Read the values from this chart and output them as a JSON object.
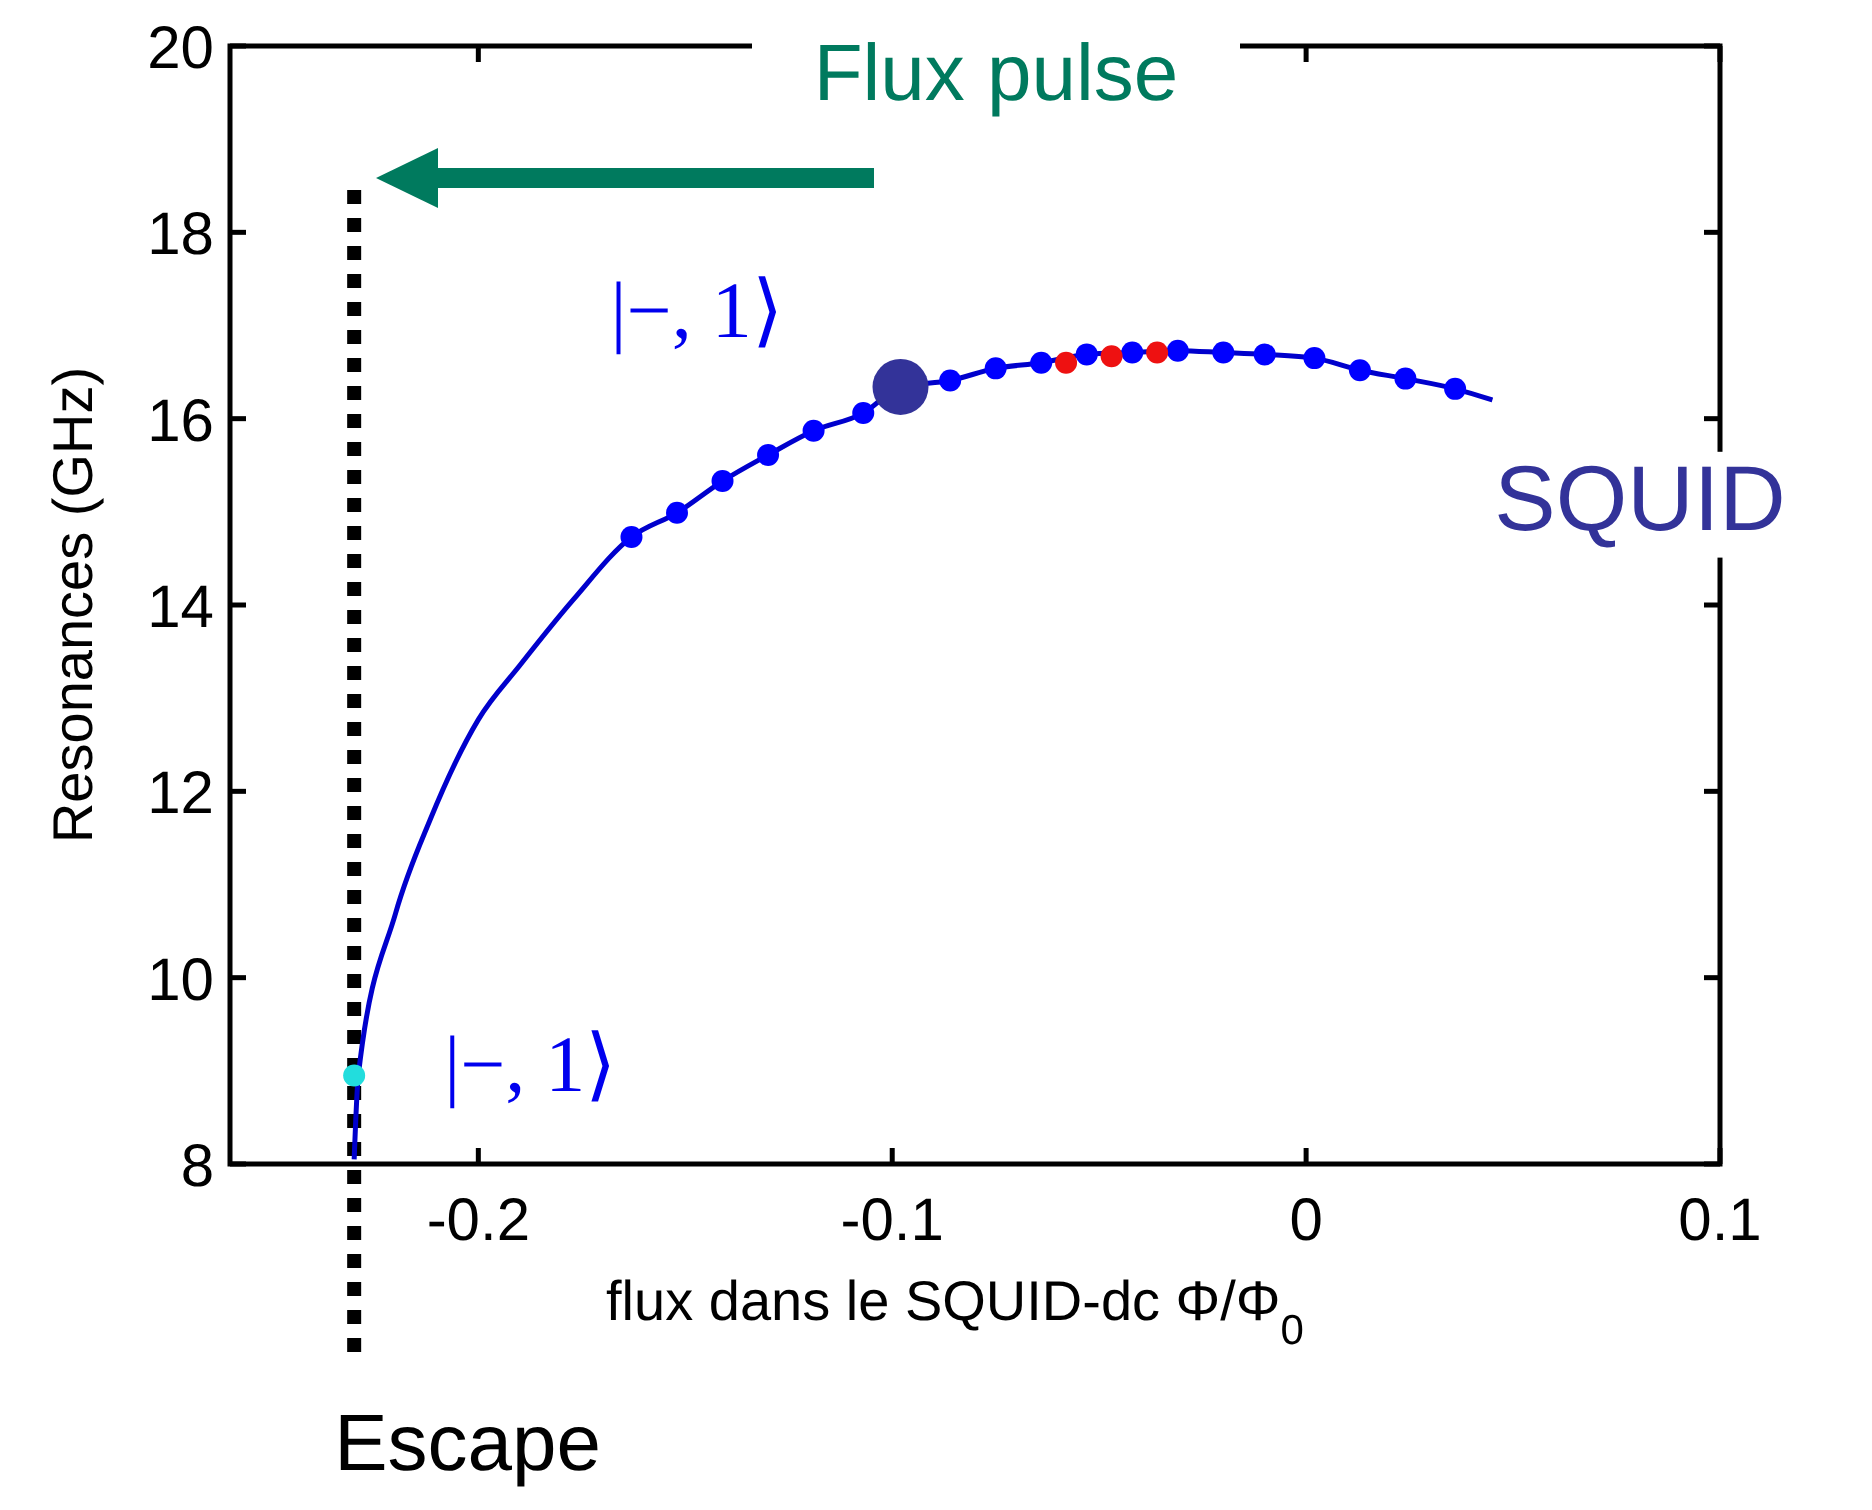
{
  "chart_data": {
    "type": "scatter",
    "xlabel": "flux dans le SQUID-dc Φ/Φ$_{0}$",
    "ylabel": "Resonances (GHz)",
    "xlim": [
      -0.26,
      0.1
    ],
    "xticks": [
      -0.2,
      -0.1,
      0,
      0.1
    ],
    "ylim": [
      8,
      20
    ],
    "yticks": [
      8,
      10,
      12,
      14,
      16,
      18,
      20
    ],
    "grid": false,
    "marker": "circle",
    "series": [
      {
        "type": "line",
        "marker": "none",
        "color": "#0000cc",
        "x": [
          -0.23,
          -0.229,
          -0.22,
          -0.2116,
          -0.2,
          -0.19,
          -0.177,
          -0.163,
          -0.152,
          -0.141,
          -0.13,
          -0.119,
          -0.107,
          -0.098,
          -0.086,
          -0.075,
          -0.064,
          -0.053,
          -0.042,
          -0.031,
          -0.02,
          -0.01,
          0.002,
          0.013,
          0.024,
          0.036,
          0.045
        ],
        "values": [
          8.05,
          8.95,
          10.69,
          11.7,
          12.77,
          13.35,
          14.06,
          14.73,
          14.99,
          15.33,
          15.61,
          15.87,
          16.06,
          16.34,
          16.41,
          16.54,
          16.6,
          16.69,
          16.71,
          16.73,
          16.71,
          16.69,
          16.65,
          16.52,
          16.43,
          16.32,
          16.2
        ]
      },
      {
        "color": "#0000ff",
        "x": [
          -0.163,
          -0.152,
          -0.141,
          -0.13,
          -0.119,
          -0.107,
          -0.086,
          -0.075,
          -0.064,
          -0.053,
          -0.042,
          -0.031,
          -0.02,
          -0.01,
          0.002,
          0.013,
          0.024,
          0.036
        ],
        "values": [
          14.73,
          14.99,
          15.33,
          15.61,
          15.87,
          16.06,
          16.41,
          16.54,
          16.6,
          16.69,
          16.71,
          16.73,
          16.71,
          16.69,
          16.65,
          16.52,
          16.43,
          16.32
        ]
      },
      {
        "color": "#ee1111",
        "x": [
          -0.058,
          -0.047,
          -0.036
        ],
        "values": [
          16.6,
          16.67,
          16.71
        ]
      },
      {
        "type": "bubble",
        "color": "#333399",
        "x": [
          -0.098
        ],
        "values": [
          16.34
        ],
        "sizes": [
          1
        ]
      },
      {
        "color": "#22dddd",
        "x": [
          -0.23
        ],
        "values": [
          8.95
        ]
      }
    ],
    "ref_lines": [
      {
        "axis": "x",
        "value": -0.23,
        "label": "Escape",
        "color": "#000000",
        "line_style": "dotted"
      }
    ],
    "annotations": [
      "Flux pulse",
      {
        "text": "|−, 1⟩",
        "x": -0.098,
        "y": 16.34
      },
      {
        "text": "|−, 1⟩",
        "x": -0.23,
        "y": 8.95
      },
      "SQUID"
    ]
  }
}
